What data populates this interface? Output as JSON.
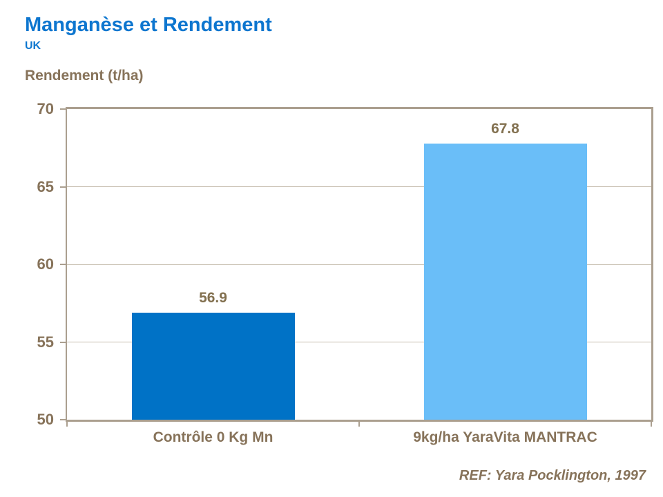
{
  "slide": {
    "title": "Manganèse et Rendement",
    "subtitle": "UK",
    "axis_title": "Rendement (t/ha)",
    "reference": "REF: Yara Pocklington, 1997"
  },
  "colors": {
    "title_blue": "#0d76cf",
    "text_brown": "#87735a",
    "value_label_brown": "#82704f",
    "axis_line": "#ab9f8f",
    "grid_line": "#c3b9a9",
    "bar_control": "#0072c6",
    "bar_treated": "#6abef8",
    "background": "#ffffff"
  },
  "chart_data": {
    "type": "bar",
    "title": "Manganèse et Rendement",
    "subtitle": "UK",
    "categories": [
      "Contrôle 0 Kg Mn",
      "9kg/ha YaraVita MANTRAC"
    ],
    "values": [
      56.9,
      67.8
    ],
    "value_labels": [
      "56.9",
      "67.8"
    ],
    "bar_colors": [
      "#0072c6",
      "#6abef8"
    ],
    "xlabel": "",
    "ylabel": "Rendement (t/ha)",
    "ylim": [
      50,
      70
    ],
    "yticks": [
      50,
      55,
      60,
      65,
      70
    ],
    "grid": "horizontal",
    "legend_position": "none"
  }
}
